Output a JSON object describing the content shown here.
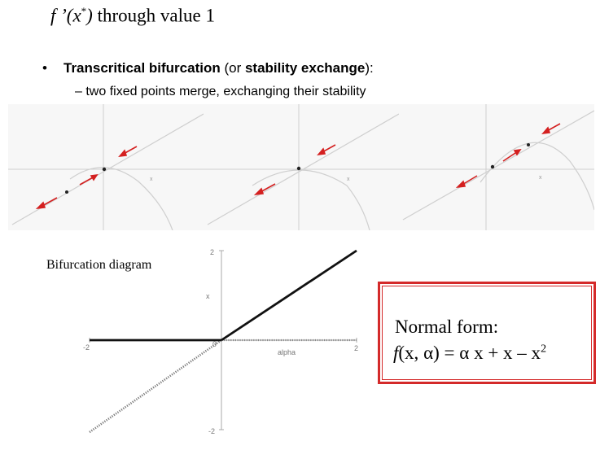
{
  "header": {
    "f": "f",
    "prime": " ’(x",
    "star": "*",
    "close": ")",
    "rest": " through value 1"
  },
  "bullet": {
    "marker": "•",
    "term": "Transcritical bifurcation",
    "open": " (or ",
    "alt": "stability exchange",
    "close": "):"
  },
  "sub_bullet": "– two fixed points merge, exchanging their stability",
  "panels": [
    {
      "id": "before",
      "axis_label": "x"
    },
    {
      "id": "merge",
      "axis_label": "x"
    },
    {
      "id": "after",
      "axis_label": "x"
    }
  ],
  "diagram": {
    "label": "Bifurcation diagram",
    "x_axis_label": "alpha",
    "y_axis_label": "x",
    "x_tick_min": "-2",
    "x_tick_zero": "0",
    "x_tick_max": "2",
    "y_tick_max": "2",
    "y_tick_min": "-2",
    "colors": {
      "stable": "#111111",
      "unstable": "#777777"
    }
  },
  "normal_form": {
    "title": "Normal form:",
    "f": "f",
    "args": "(x, ",
    "alpha": "α",
    "rhs": ") = ",
    "alpha2": "α",
    "terms": " x + x – x",
    "power": "2"
  },
  "colors": {
    "arrow": "#d42020",
    "box_border": "#d42a2a"
  }
}
